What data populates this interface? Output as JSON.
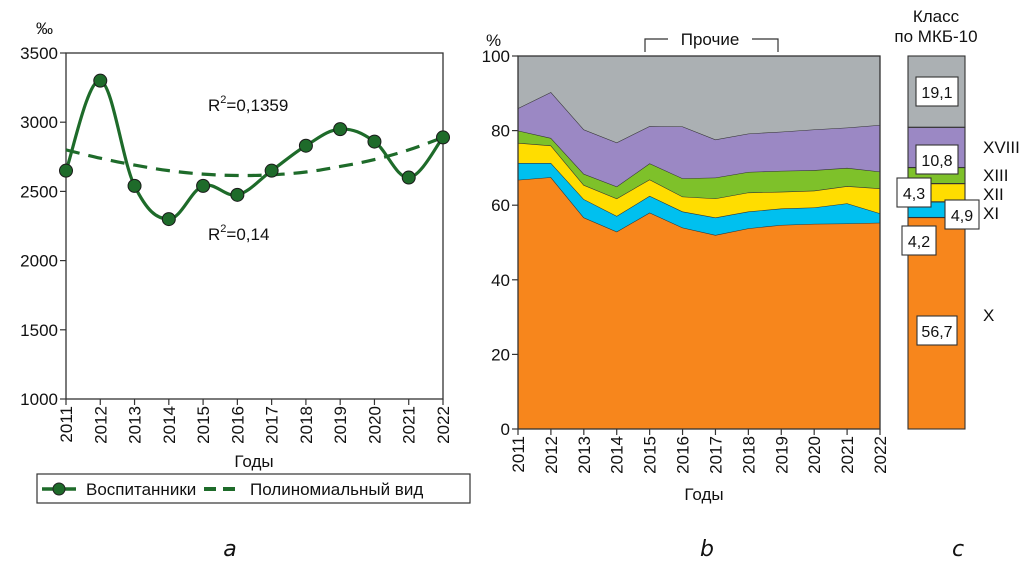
{
  "figure": {
    "panel_labels": [
      "a",
      "b",
      "c"
    ]
  },
  "chart_data": [
    {
      "panel": "a",
      "type": "line",
      "title": "",
      "ylabel_unit": "‰",
      "xlabel": "Годы",
      "ylim": [
        1000,
        3500
      ],
      "yticks": [
        1000,
        1500,
        2000,
        2500,
        3000,
        3500
      ],
      "x": [
        "2011",
        "2012",
        "2013",
        "2014",
        "2015",
        "2016",
        "2017",
        "2018",
        "2019",
        "2020",
        "2021",
        "2022"
      ],
      "grid": false,
      "series": [
        {
          "name": "Воспитанники",
          "style": "solid-with-markers",
          "color": "#1e6b2a",
          "values": [
            2650,
            3300,
            2540,
            2300,
            2540,
            2475,
            2650,
            2830,
            2950,
            2860,
            2600,
            2890
          ]
        },
        {
          "name": "Полиномиальный вид",
          "style": "dashed",
          "color": "#1e6b2a",
          "values": [
            2800,
            2740,
            2690,
            2650,
            2625,
            2615,
            2620,
            2640,
            2680,
            2730,
            2800,
            2890
          ]
        }
      ],
      "annotations": [
        {
          "text_base": "R",
          "sup": "2",
          "text_rest": "=0,1359"
        },
        {
          "text_base": "R",
          "sup": "2",
          "text_rest": "=0,14"
        }
      ],
      "legend": {
        "placement": "bottom",
        "entries": [
          "Воспитанники",
          "Полиномиальный вид"
        ]
      }
    },
    {
      "panel": "b",
      "type": "area",
      "stacked": true,
      "ylabel_unit": "%",
      "xlabel": "Годы",
      "ylim": [
        0,
        100
      ],
      "yticks": [
        0,
        20,
        40,
        60,
        80,
        100
      ],
      "x": [
        "2011",
        "2012",
        "2013",
        "2014",
        "2015",
        "2016",
        "2017",
        "2018",
        "2019",
        "2020",
        "2021",
        "2022"
      ],
      "grid": false,
      "bracket_label": "Прочие",
      "cumulative_boundaries_note": "values are layer thicknesses in %",
      "series": [
        {
          "name": "X",
          "color": "#f7861c",
          "values": [
            66.8,
            67.5,
            56.7,
            52.9,
            58.0,
            54.0,
            52.0,
            53.8,
            54.7,
            55.0,
            55.1,
            55.3
          ]
        },
        {
          "name": "XI",
          "color": "#00c0ef",
          "values": [
            4.5,
            3.8,
            4.9,
            4.2,
            4.5,
            4.3,
            4.7,
            4.5,
            4.4,
            4.4,
            5.4,
            2.5
          ]
        },
        {
          "name": "XII",
          "color": "#ffdd00",
          "values": [
            5.4,
            4.7,
            3.8,
            4.7,
            4.4,
            4.0,
            5.1,
            5.1,
            4.5,
            4.5,
            4.6,
            6.7
          ]
        },
        {
          "name": "XIII",
          "color": "#7ec12a",
          "values": [
            3.3,
            2.0,
            3.0,
            3.2,
            4.3,
            4.9,
            5.6,
            5.5,
            5.6,
            5.5,
            4.9,
            4.5
          ]
        },
        {
          "name": "XVIII",
          "color": "#9b88c4",
          "values": [
            6.0,
            12.3,
            11.9,
            11.8,
            10.0,
            13.9,
            10.2,
            10.3,
            10.5,
            10.9,
            10.8,
            12.5
          ]
        },
        {
          "name": "Прочие",
          "color": "#abb0b3",
          "values": [
            14.0,
            9.7,
            19.7,
            23.2,
            18.8,
            18.9,
            22.4,
            20.8,
            20.3,
            19.7,
            19.2,
            18.5
          ]
        }
      ]
    },
    {
      "panel": "c",
      "type": "bar",
      "stacked": true,
      "title": "Класс по МКБ-10",
      "title_lines": [
        "Класс",
        "по МКБ-10"
      ],
      "ylim": [
        0,
        100
      ],
      "segments": [
        {
          "class": "X",
          "value": 56.7,
          "label": "56,7",
          "color": "#f7861c"
        },
        {
          "class": "XI",
          "value": 4.2,
          "label": "4,2",
          "color": "#00c0ef"
        },
        {
          "class": "XII",
          "value": 4.9,
          "label": "4,9",
          "color": "#ffdd00"
        },
        {
          "class": "XIII",
          "value": 4.3,
          "label": "4,3",
          "color": "#7ec12a"
        },
        {
          "class": "XVIII",
          "value": 10.8,
          "label": "10,8",
          "color": "#9b88c4"
        },
        {
          "class": "",
          "value": 19.1,
          "label": "19,1",
          "color": "#abb0b3"
        }
      ]
    }
  ]
}
